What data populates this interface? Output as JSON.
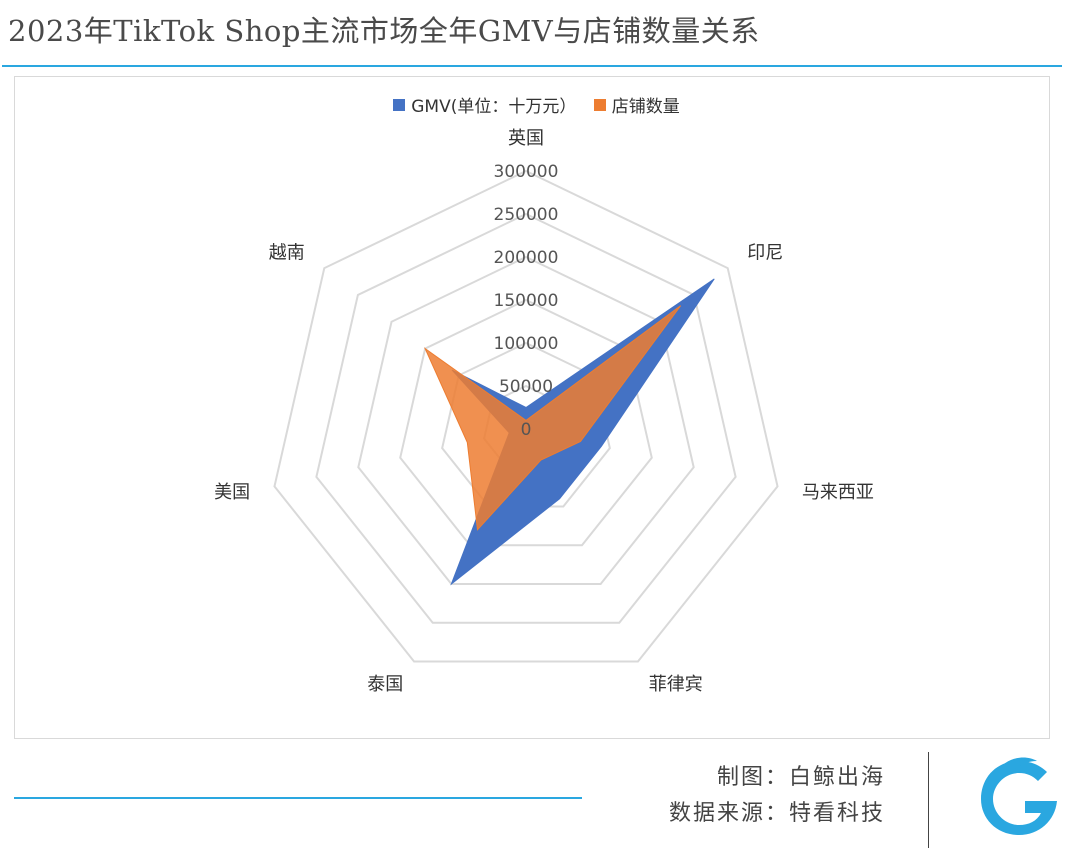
{
  "header": {
    "title": "2023年TikTok Shop主流市场全年GMV与店铺数量关系"
  },
  "legend": {
    "gmv_label": "GMV(单位：十万元）",
    "shops_label": "店铺数量"
  },
  "colors": {
    "gmv": "#4472C4",
    "shops": "#ED7D31",
    "accent": "#2AA7E0"
  },
  "footer": {
    "maker": "制图：白鲸出海",
    "source": "数据来源：特看科技"
  },
  "logo": {
    "icon": "baijing-logo-icon"
  },
  "chart_data": {
    "type": "radar",
    "categories": [
      "英国",
      "印尼",
      "马来西亚",
      "菲律宾",
      "泰国",
      "美国",
      "越南"
    ],
    "series": [
      {
        "name": "GMV(单位：十万元）",
        "values": [
          25000,
          280000,
          90000,
          90000,
          200000,
          20000,
          110000
        ]
      },
      {
        "name": "店铺数量",
        "values": [
          10000,
          230000,
          65000,
          40000,
          130000,
          70000,
          150000
        ]
      }
    ],
    "radial_ticks": [
      0,
      50000,
      100000,
      150000,
      200000,
      250000,
      300000
    ],
    "rlim": [
      0,
      300000
    ],
    "legend_position": "top",
    "grid": true
  }
}
